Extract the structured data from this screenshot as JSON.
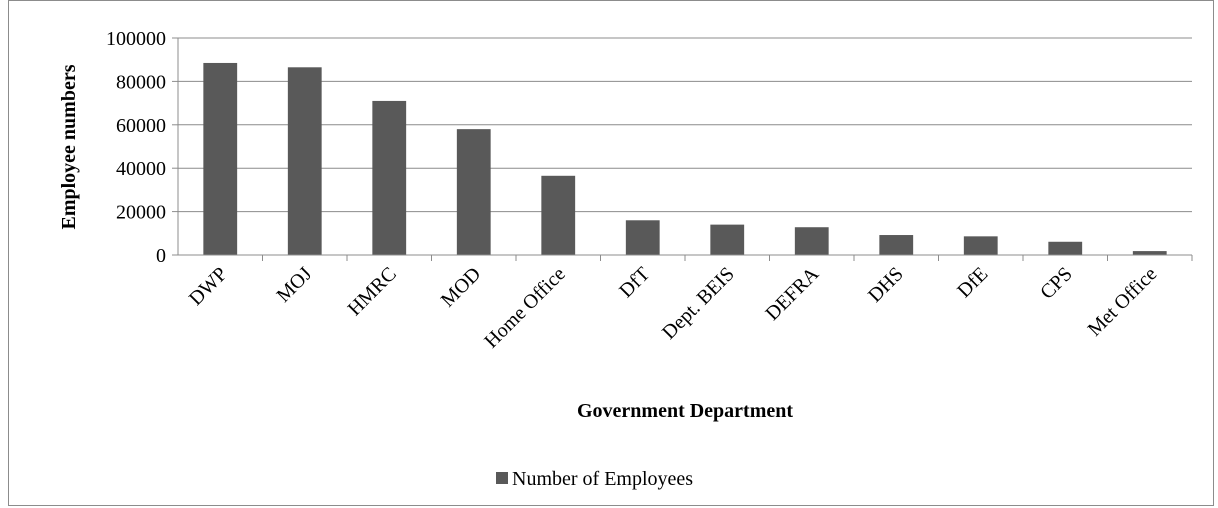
{
  "chart_data": {
    "type": "bar",
    "title": "",
    "xlabel": "Government Department",
    "ylabel": "Employee numbers",
    "categories": [
      "DWP",
      "MOJ",
      "HMRC",
      "MOD",
      "Home Office",
      "DfT",
      "Dept. BEIS",
      "DEFRA",
      "DHS",
      "DfE",
      "CPS",
      "Met Office"
    ],
    "series": [
      {
        "name": "Number of Employees",
        "values": [
          88500,
          86500,
          71000,
          58000,
          36500,
          16000,
          14000,
          12800,
          9200,
          8600,
          6100,
          1800
        ]
      }
    ],
    "ylim": [
      0,
      100000
    ],
    "yticks": [
      "0",
      "20000",
      "40000",
      "60000",
      "80000",
      "100000"
    ],
    "grid": true,
    "legend": "bottom-center",
    "colors": {
      "bar": "#595959",
      "grid": "#8c8c8c",
      "axis": "#8c8c8c"
    }
  }
}
